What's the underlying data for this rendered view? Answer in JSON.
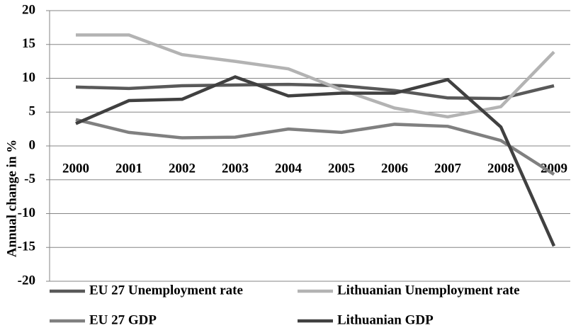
{
  "chart_data": {
    "type": "line",
    "y_label": "Annual change in %",
    "categories": [
      "2000",
      "2001",
      "2002",
      "2003",
      "2004",
      "2005",
      "2006",
      "2007",
      "2008",
      "2009"
    ],
    "series": [
      {
        "name": "EU 27 Unemployment rate",
        "color": "#595959",
        "values": [
          8.7,
          8.5,
          8.9,
          9.0,
          9.1,
          8.9,
          8.2,
          7.1,
          7.0,
          8.9
        ]
      },
      {
        "name": "Lithuanian Unemployment rate",
        "color": "#b3b3b3",
        "values": [
          16.4,
          16.4,
          13.5,
          12.5,
          11.4,
          8.3,
          5.6,
          4.3,
          5.8,
          13.9
        ]
      },
      {
        "name": "EU 27 GDP",
        "color": "#808080",
        "values": [
          3.9,
          2.0,
          1.2,
          1.3,
          2.5,
          2.0,
          3.2,
          2.9,
          0.8,
          -4.2
        ]
      },
      {
        "name": "Lithuanian GDP",
        "color": "#404040",
        "values": [
          3.3,
          6.7,
          6.9,
          10.2,
          7.4,
          7.8,
          7.8,
          9.8,
          2.8,
          -14.8
        ]
      }
    ],
    "ylim": [
      -20,
      20
    ],
    "yticks": [
      -20,
      -15,
      -10,
      -5,
      0,
      5,
      10,
      15,
      20
    ],
    "grid": true
  }
}
